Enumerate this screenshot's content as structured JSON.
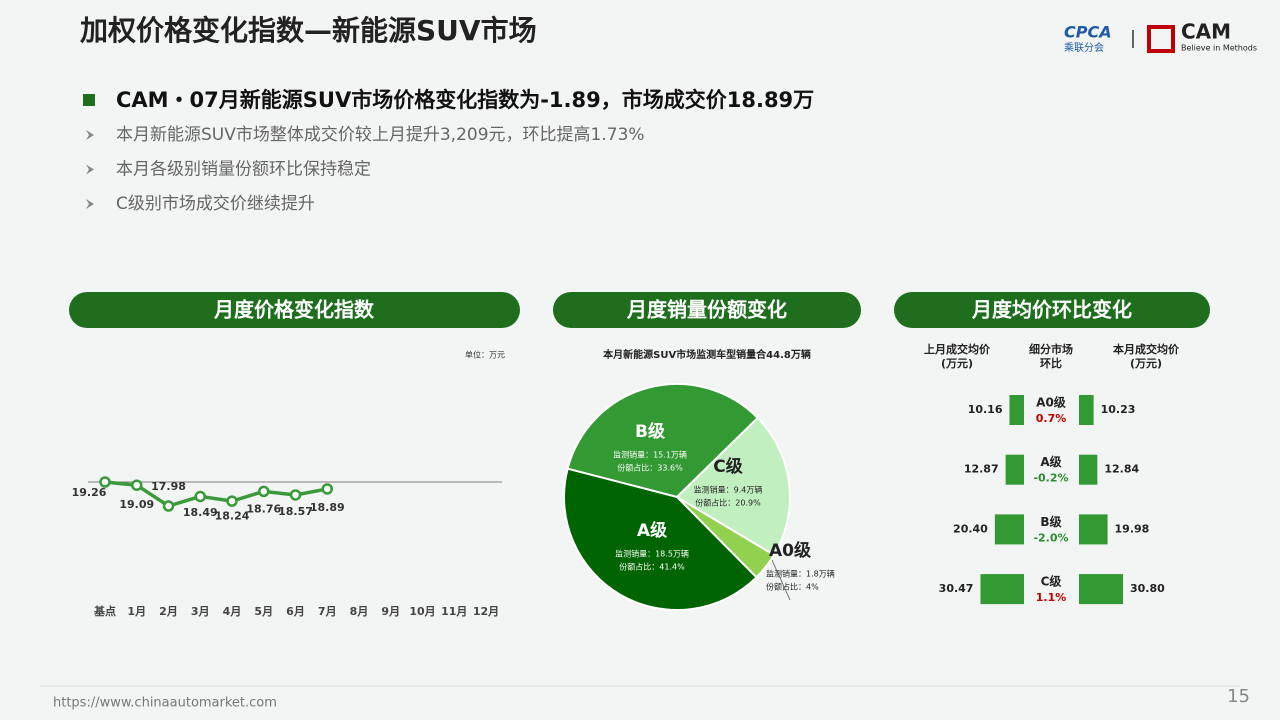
{
  "header": {
    "title": "加权价格变化指数—新能源SUV市场",
    "logo_left": "CPCA",
    "logo_left_sub": "乘联分会",
    "logo_right": "CAM",
    "logo_right_sub": "Believe in Methods"
  },
  "headline": "CAM・07月新能源SUV市场价格变化指数为-1.89，市场成交价18.89万",
  "bullets": [
    "本月新能源SUV市场整体成交价较上月提升3,209元，环比提高1.73%",
    "本月各级别销量份额环比保持稳定",
    "C级别市场成交价继续提升"
  ],
  "chart_data": [
    {
      "type": "line",
      "title": "月度价格变化指数",
      "unit": "单位：万元",
      "categories": [
        "基点",
        "1月",
        "2月",
        "3月",
        "4月",
        "5月",
        "6月",
        "7月",
        "8月",
        "9月",
        "10月",
        "11月",
        "12月"
      ],
      "values": [
        19.26,
        19.09,
        17.98,
        18.49,
        18.24,
        18.76,
        18.57,
        18.89,
        null,
        null,
        null,
        null,
        null
      ],
      "color": "#3a9a3a"
    },
    {
      "type": "pie",
      "title": "月度销量份额变化",
      "subtitle": "本月新能源SUV市场监测车型销量合44.8万辆",
      "categories": [
        "B级",
        "C级",
        "A0级",
        "A级"
      ],
      "values": [
        33.6,
        20.9,
        4,
        41.4
      ],
      "value_labels": [
        "份额占比：33.6%",
        "份额占比：20.9%",
        "份额占比：4%",
        "份额占比：41.4%"
      ],
      "sales_labels": [
        "监测销量：15.1万辆",
        "监测销量：9.4万辆",
        "监测销量：1.8万辆",
        "监测销量：18.5万辆"
      ],
      "colors": [
        "#339933",
        "#c2efc0",
        "#92d050",
        "#006400"
      ]
    },
    {
      "type": "bar",
      "title": "月度均价环比变化",
      "column_headers": [
        [
          "上月成交均价",
          "(万元)"
        ],
        [
          "细分市场",
          "环比"
        ],
        [
          "本月成交均价",
          "(万元)"
        ]
      ],
      "categories": [
        "A0级",
        "A级",
        "B级",
        "C级"
      ],
      "series": [
        {
          "values": [
            10.16,
            12.87,
            20.4,
            30.47
          ],
          "value_labels": [
            "10.16",
            "12.87",
            "20.40",
            "30.47"
          ],
          "color": "#339933"
        },
        {
          "values": [
            10.23,
            12.84,
            19.98,
            30.8
          ],
          "value_labels": [
            "10.23",
            "12.84",
            "19.98",
            "30.80"
          ],
          "color": "#339933"
        }
      ],
      "changes": [
        0.7,
        -0.2,
        -2.0,
        1.1
      ],
      "change_labels": [
        "0.7%",
        "-0.2%",
        "-2.0%",
        "1.1%"
      ],
      "positive_color": "#c00000",
      "negative_color": "#2e8b2e"
    }
  ],
  "footer": {
    "url": "https://www.chinaautomarket.com",
    "page": "15"
  }
}
